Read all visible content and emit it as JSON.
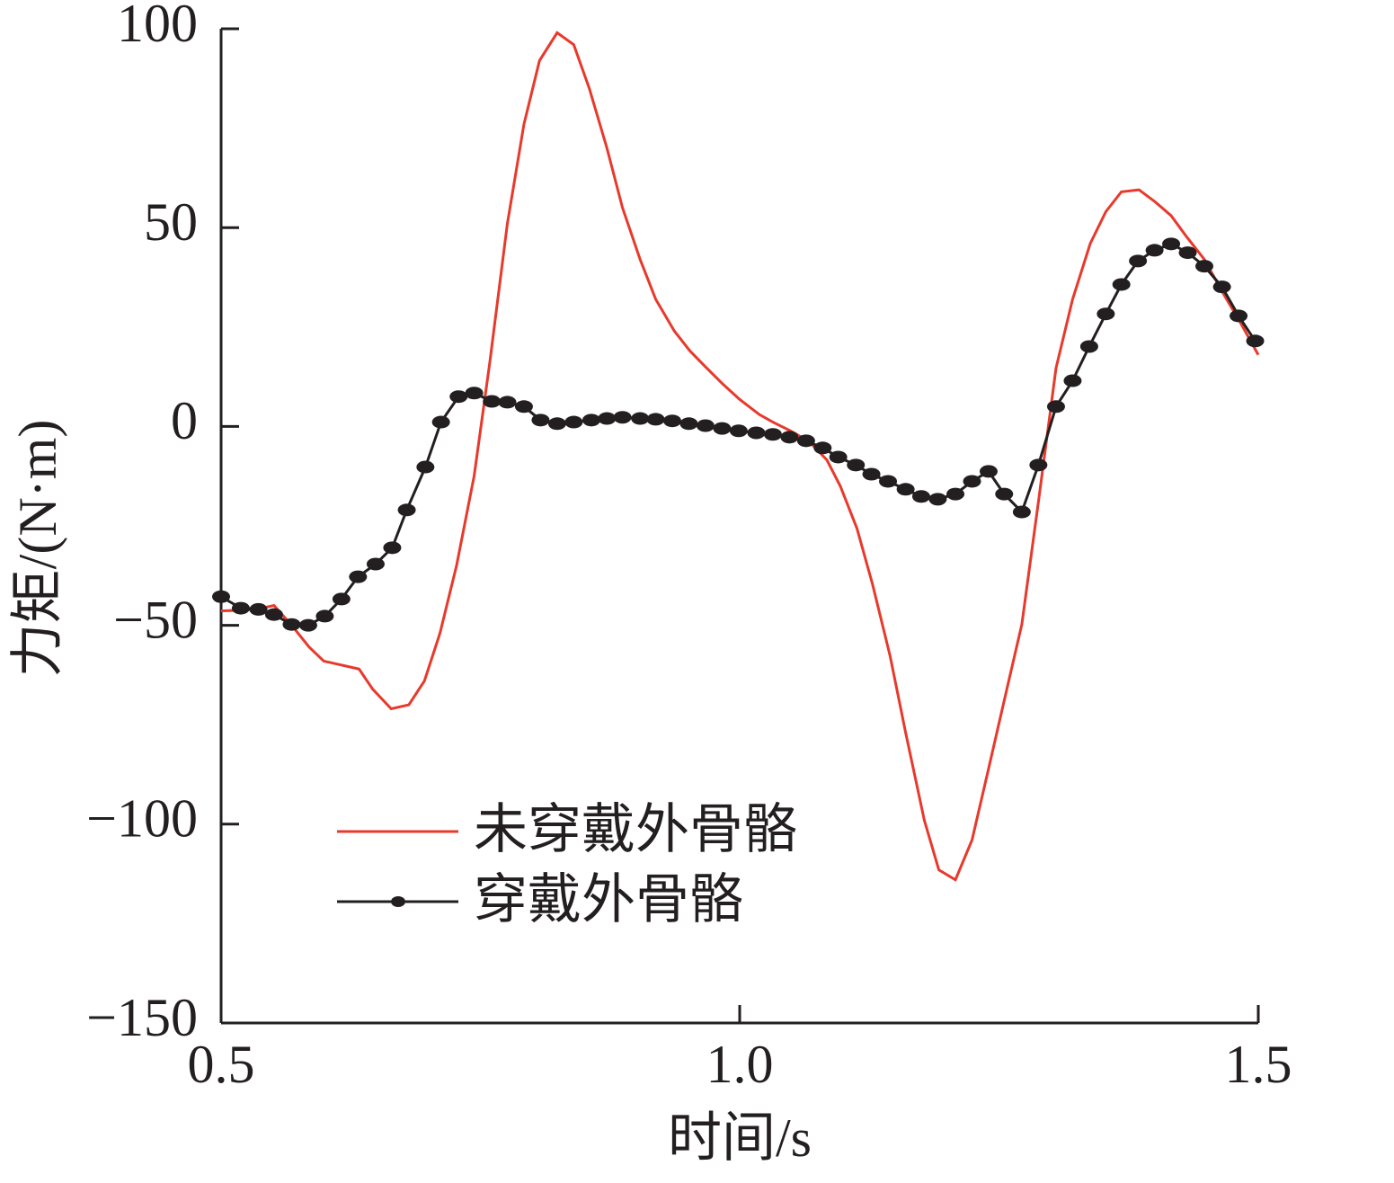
{
  "chart_data": {
    "type": "line",
    "xlabel": "时间/s",
    "ylabel": "力矩/(N·m)",
    "xlim": [
      0.5,
      1.5
    ],
    "xticks": [
      0.5,
      {
        "value": 1.0,
        "label": "1.0"
      },
      1.5
    ],
    "ylim": [
      -150,
      100
    ],
    "yticks": [
      {
        "value": -150,
        "label": "−150"
      },
      {
        "value": -100,
        "label": "−100"
      },
      {
        "value": -50,
        "label": "−50"
      },
      0,
      50,
      100
    ],
    "grid": false,
    "legend": "lower left",
    "series": [
      {
        "name": "未穿戴外骨骼",
        "color": "#e8392c",
        "marker": false,
        "x": [
          0.5,
          0.534,
          0.551,
          0.568,
          0.585,
          0.599,
          0.616,
          0.633,
          0.646,
          0.664,
          0.681,
          0.696,
          0.711,
          0.727,
          0.744,
          0.759,
          0.776,
          0.792,
          0.807,
          0.824,
          0.84,
          0.855,
          0.872,
          0.887,
          0.904,
          0.919,
          0.937,
          0.952,
          0.967,
          0.984,
          1.0,
          1.019,
          1.032,
          1.049,
          1.067,
          1.084,
          1.097,
          1.113,
          1.128,
          1.145,
          1.16,
          1.178,
          1.192,
          1.208,
          1.224,
          1.24,
          1.257,
          1.272,
          1.288,
          1.305,
          1.321,
          1.338,
          1.353,
          1.368,
          1.385,
          1.4,
          1.416,
          1.43,
          1.448,
          1.465,
          1.483,
          1.5
        ],
        "values": [
          -46.4,
          -46,
          -45,
          -50,
          -55.5,
          -59,
          -60,
          -61,
          -66,
          -71,
          -70,
          -64,
          -52,
          -35,
          -12.4,
          16,
          51,
          76,
          92,
          99,
          96,
          85,
          70,
          55,
          42,
          32,
          24,
          19,
          15,
          10.6,
          6.8,
          3,
          1.1,
          -1.1,
          -3.8,
          -8.4,
          -15,
          -25.6,
          -39.6,
          -57.7,
          -77,
          -99,
          -111.5,
          -114,
          -104,
          -86,
          -66.7,
          -49.8,
          -19,
          14.7,
          32,
          46,
          54,
          59,
          59.5,
          56.6,
          53,
          48,
          42,
          34,
          26,
          18
        ]
      },
      {
        "name": "穿戴外骨骼",
        "color": "#231f20",
        "marker": true,
        "x": [
          0.5,
          0.519,
          0.536,
          0.551,
          0.568,
          0.584,
          0.6,
          0.616,
          0.632,
          0.649,
          0.665,
          0.679,
          0.697,
          0.712,
          0.729,
          0.744,
          0.761,
          0.776,
          0.792,
          0.808,
          0.824,
          0.84,
          0.857,
          0.872,
          0.887,
          0.904,
          0.919,
          0.935,
          0.951,
          0.967,
          0.983,
          0.999,
          1.016,
          1.032,
          1.048,
          1.064,
          1.08,
          1.095,
          1.112,
          1.127,
          1.143,
          1.16,
          1.175,
          1.191,
          1.208,
          1.224,
          1.24,
          1.255,
          1.272,
          1.288,
          1.305,
          1.321,
          1.337,
          1.353,
          1.368,
          1.384,
          1.4,
          1.416,
          1.432,
          1.448,
          1.465,
          1.481,
          1.497
        ],
        "values": [
          -42.8,
          -45.7,
          -46,
          -47.3,
          -49.8,
          -50,
          -47.7,
          -43.4,
          -37.8,
          -34.6,
          -30.5,
          -21,
          -10.2,
          1.1,
          7.5,
          8.4,
          6.3,
          6.1,
          5,
          1.6,
          0.7,
          1.1,
          1.6,
          2,
          2.3,
          2,
          1.8,
          1.4,
          0.7,
          0.2,
          -0.5,
          -1.1,
          -1.6,
          -2,
          -2.7,
          -3.6,
          -5.4,
          -7.7,
          -9.7,
          -12,
          -13.8,
          -15.8,
          -17.6,
          -18.3,
          -17,
          -13.8,
          -11.3,
          -17,
          -21.5,
          -9.7,
          5,
          11.5,
          20.1,
          28.3,
          35.7,
          41.6,
          44.3,
          45.9,
          43.7,
          40.3,
          35.1,
          27.8,
          21.5
        ]
      }
    ]
  }
}
